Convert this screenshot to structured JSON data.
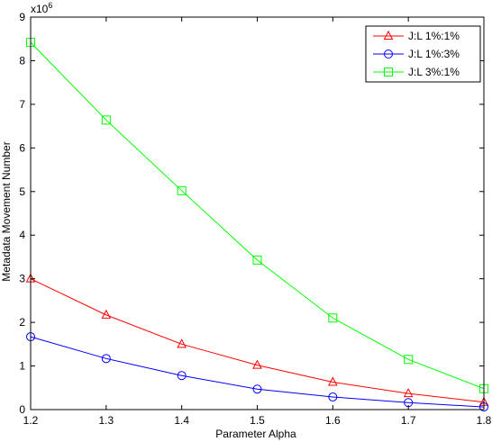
{
  "chart_data": {
    "type": "line",
    "title": "",
    "xlabel": "Parameter Alpha",
    "ylabel": "Metadata Movement Number",
    "y_multiplier_label": {
      "base": "x10",
      "exponent": "6"
    },
    "xlim": [
      1.2,
      1.8
    ],
    "ylim": [
      0,
      9
    ],
    "x_ticks": [
      "1.2",
      "1.3",
      "1.4",
      "1.5",
      "1.6",
      "1.7",
      "1.8"
    ],
    "y_ticks": [
      "0",
      "1",
      "2",
      "3",
      "4",
      "5",
      "6",
      "7",
      "8",
      "9"
    ],
    "grid": false,
    "legend_position": "top-right",
    "x": [
      1.2,
      1.3,
      1.4,
      1.5,
      1.6,
      1.7,
      1.8
    ],
    "series": [
      {
        "name": "J:L 1%:1%",
        "color": "#ff0000",
        "marker": "triangle",
        "values": [
          3.0,
          2.17,
          1.5,
          1.02,
          0.63,
          0.37,
          0.17
        ]
      },
      {
        "name": "J:L 1%:3%",
        "color": "#0000ff",
        "marker": "circle",
        "values": [
          1.67,
          1.17,
          0.78,
          0.47,
          0.29,
          0.16,
          0.06
        ]
      },
      {
        "name": "J:L 3%:1%",
        "color": "#00ff00",
        "marker": "square",
        "values": [
          8.42,
          6.64,
          5.02,
          3.43,
          2.1,
          1.15,
          0.48
        ]
      }
    ]
  }
}
